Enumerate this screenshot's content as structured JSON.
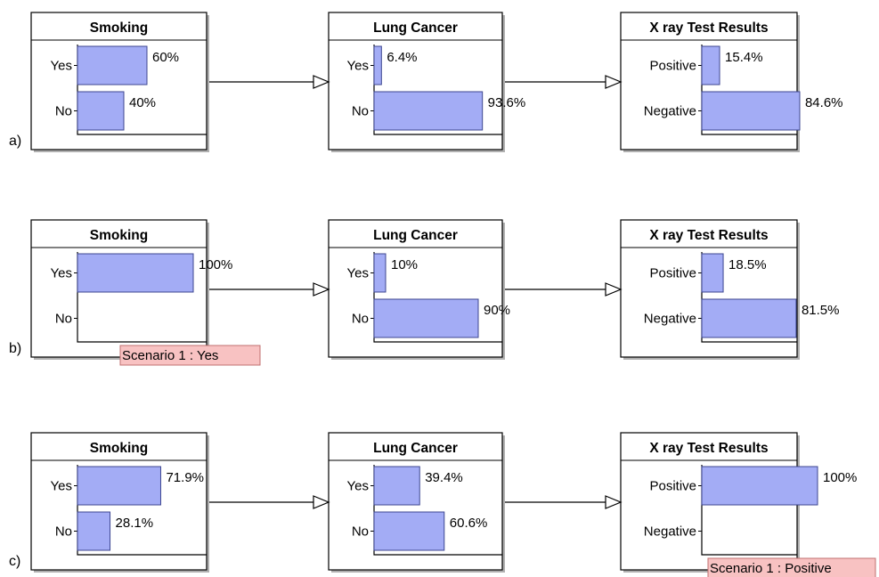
{
  "panels": [
    {
      "label": "a)",
      "nodes": [
        {
          "title": "Smoking",
          "states": [
            {
              "label": "Yes",
              "pct": 60,
              "text": "60%"
            },
            {
              "label": "No",
              "pct": 40,
              "text": "40%"
            }
          ]
        },
        {
          "title": "Lung Cancer",
          "states": [
            {
              "label": "Yes",
              "pct": 6.4,
              "text": "6.4%"
            },
            {
              "label": "No",
              "pct": 93.6,
              "text": "93.6%"
            }
          ]
        },
        {
          "title": "X ray Test Results",
          "states": [
            {
              "label": "Positive",
              "pct": 15.4,
              "text": "15.4%"
            },
            {
              "label": "Negative",
              "pct": 84.6,
              "text": "84.6%"
            }
          ]
        }
      ],
      "scenario": null
    },
    {
      "label": "b)",
      "nodes": [
        {
          "title": "Smoking",
          "states": [
            {
              "label": "Yes",
              "pct": 100,
              "text": "100%"
            },
            {
              "label": "No",
              "pct": 0,
              "text": ""
            }
          ]
        },
        {
          "title": "Lung Cancer",
          "states": [
            {
              "label": "Yes",
              "pct": 10,
              "text": "10%"
            },
            {
              "label": "No",
              "pct": 90,
              "text": "90%"
            }
          ]
        },
        {
          "title": "X ray Test Results",
          "states": [
            {
              "label": "Positive",
              "pct": 18.5,
              "text": "18.5%"
            },
            {
              "label": "Negative",
              "pct": 81.5,
              "text": "81.5%"
            }
          ]
        }
      ],
      "scenario": {
        "node": 0,
        "text": "Scenario 1 : Yes"
      }
    },
    {
      "label": "c)",
      "nodes": [
        {
          "title": "Smoking",
          "states": [
            {
              "label": "Yes",
              "pct": 71.9,
              "text": "71.9%"
            },
            {
              "label": "No",
              "pct": 28.1,
              "text": "28.1%"
            }
          ]
        },
        {
          "title": "Lung Cancer",
          "states": [
            {
              "label": "Yes",
              "pct": 39.4,
              "text": "39.4%"
            },
            {
              "label": "No",
              "pct": 60.6,
              "text": "60.6%"
            }
          ]
        },
        {
          "title": "X ray Test Results",
          "states": [
            {
              "label": "Positive",
              "pct": 100,
              "text": "100%"
            },
            {
              "label": "Negative",
              "pct": 0,
              "text": ""
            }
          ]
        }
      ],
      "scenario": {
        "node": 2,
        "text": "Scenario 1 : Positive"
      }
    }
  ],
  "colors": {
    "bar": "#a3acf5",
    "scenario_box": "#f8c2c2"
  }
}
